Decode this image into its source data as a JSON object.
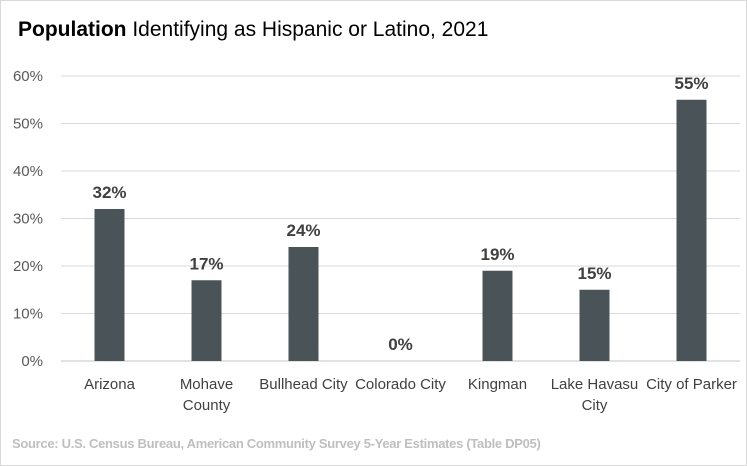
{
  "chart_data": {
    "type": "bar",
    "title_bold": "Population",
    "title_rest": " Identifying as Hispanic or Latino, 2021",
    "categories": [
      [
        "Arizona"
      ],
      [
        "Mohave",
        "County"
      ],
      [
        "Bullhead City"
      ],
      [
        "Colorado City"
      ],
      [
        "Kingman"
      ],
      [
        "Lake Havasu",
        "City"
      ],
      [
        "City of Parker"
      ]
    ],
    "values": [
      32,
      17,
      24,
      0,
      19,
      15,
      55
    ],
    "data_labels": [
      "32%",
      "17%",
      "24%",
      "0%",
      "19%",
      "15%",
      "55%"
    ],
    "yticks": [
      "0%",
      "10%",
      "20%",
      "30%",
      "40%",
      "50%",
      "60%"
    ],
    "ylim": [
      0,
      60
    ],
    "grid": true,
    "bar_color": "#4a5358",
    "source": "Source: U.S. Census Bureau,  American Community Survey 5-Year Estimates (Table DP05)"
  }
}
